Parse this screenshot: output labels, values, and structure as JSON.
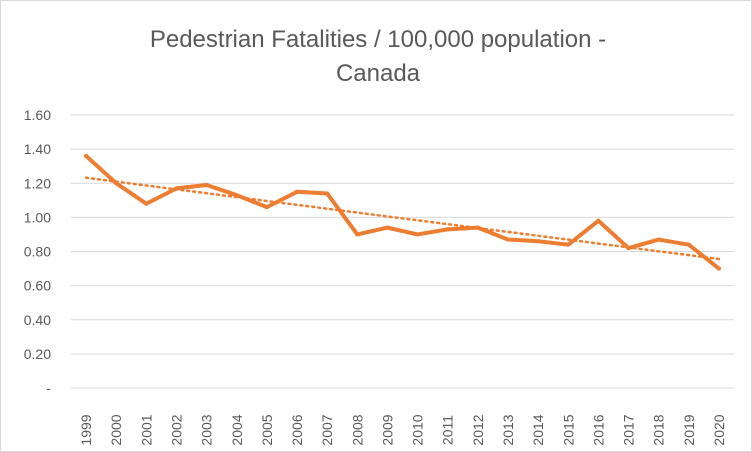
{
  "chart_data": {
    "type": "line",
    "title_lines": [
      "Pedestrian Fatalities / 100,000 population -",
      "Canada"
    ],
    "categories": [
      "1999",
      "2000",
      "2001",
      "2002",
      "2003",
      "2004",
      "2005",
      "2006",
      "2007",
      "2008",
      "2009",
      "2010",
      "2011",
      "2012",
      "2013",
      "2014",
      "2015",
      "2016",
      "2017",
      "2018",
      "2019",
      "2020"
    ],
    "series": [
      {
        "values": [
          1.36,
          1.2,
          1.08,
          1.17,
          1.19,
          1.13,
          1.06,
          1.15,
          1.14,
          0.9,
          0.94,
          0.9,
          0.93,
          0.94,
          0.87,
          0.86,
          0.84,
          0.98,
          0.82,
          0.87,
          0.84,
          0.7
        ],
        "color": "#ed7d31"
      }
    ],
    "trendline": {
      "type": "linear",
      "color": "#ed7d31",
      "style": "dotted"
    },
    "y_ticks": [
      0,
      0.2,
      0.4,
      0.6,
      0.8,
      1.0,
      1.2,
      1.4,
      1.6
    ],
    "y_tick_labels": [
      "-",
      "0.20",
      "0.40",
      "0.60",
      "0.80",
      "1.00",
      "1.20",
      "1.40",
      "1.60"
    ],
    "ylim": [
      0,
      1.6
    ],
    "grid": true,
    "legend": "none"
  }
}
